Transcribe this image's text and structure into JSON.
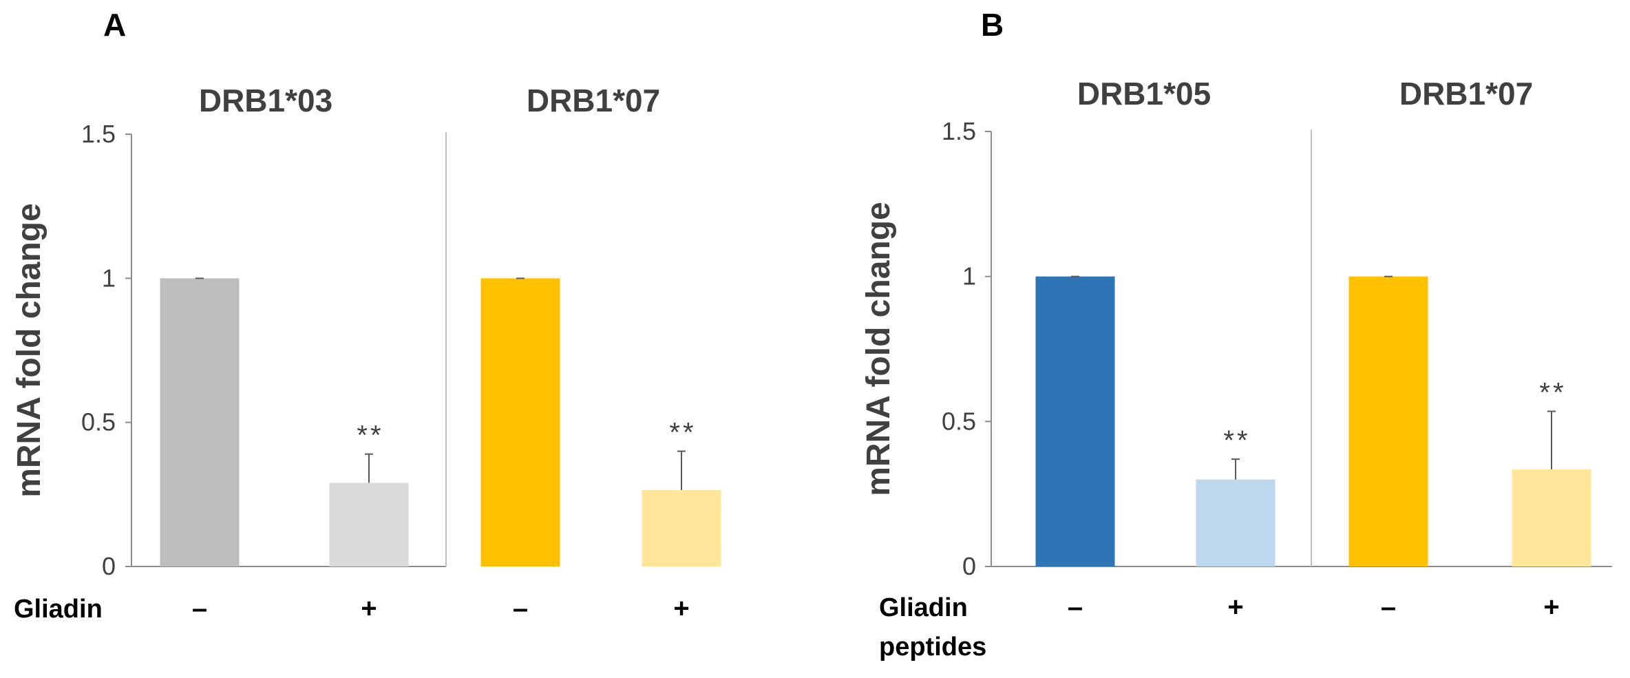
{
  "chart_data": [
    {
      "type": "bar",
      "panel": "A",
      "ylabel": "mRNA fold change",
      "ylim": [
        0,
        1.5
      ],
      "yticks": [
        "0",
        "0.5",
        "1",
        "1.5"
      ],
      "condition_label": "Gliadin",
      "groups": [
        {
          "title": "DRB1*03",
          "bars": [
            {
              "condition": "–",
              "value": 1.0,
              "error": 0.0,
              "color": "#BDBDBD",
              "sig": ""
            },
            {
              "condition": "+",
              "value": 0.29,
              "error": 0.1,
              "color": "#D9D9D9",
              "sig": "**"
            }
          ]
        },
        {
          "title": "DRB1*07",
          "bars": [
            {
              "condition": "–",
              "value": 1.0,
              "error": 0.0,
              "color": "#FFC000",
              "sig": ""
            },
            {
              "condition": "+",
              "value": 0.265,
              "error": 0.135,
              "color": "#FFE699",
              "sig": "**"
            }
          ]
        }
      ]
    },
    {
      "type": "bar",
      "panel": "B",
      "ylabel": "mRNA fold change",
      "ylim": [
        0,
        1.5
      ],
      "yticks": [
        "0",
        "0.5",
        "1",
        "1.5"
      ],
      "condition_label": "Gliadin",
      "condition_label_2": "peptides",
      "groups": [
        {
          "title": "DRB1*05",
          "bars": [
            {
              "condition": "–",
              "value": 1.0,
              "error": 0.0,
              "color": "#2E75B6",
              "sig": ""
            },
            {
              "condition": "+",
              "value": 0.3,
              "error": 0.07,
              "color": "#BDD7EE",
              "sig": "**"
            }
          ]
        },
        {
          "title": "DRB1*07",
          "bars": [
            {
              "condition": "–",
              "value": 1.0,
              "error": 0.0,
              "color": "#FFC000",
              "sig": ""
            },
            {
              "condition": "+",
              "value": 0.335,
              "error": 0.2,
              "color": "#FFE699",
              "sig": "**"
            }
          ]
        }
      ]
    }
  ]
}
